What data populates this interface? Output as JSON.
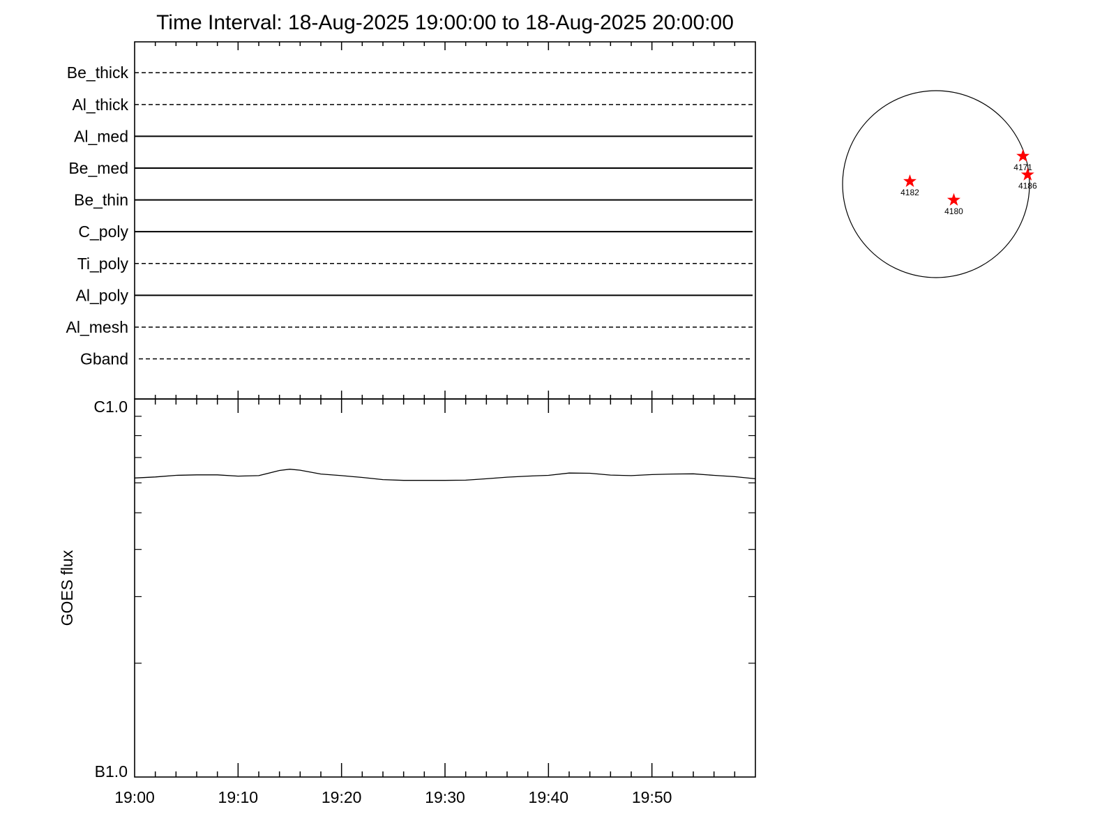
{
  "title": "Time Interval: 18-Aug-2025 19:00:00 to 18-Aug-2025 20:00:00",
  "colors": {
    "axes": "#000000",
    "background": "#ffffff",
    "marker": "#ff0000"
  },
  "chart_data": [
    {
      "type": "line",
      "name": "attenuator-status-panel",
      "x_range": [
        "19:00",
        "20:00"
      ],
      "series": [
        {
          "name": "Be_thick",
          "state": "dashed"
        },
        {
          "name": "Al_thick",
          "state": "dashed"
        },
        {
          "name": "Al_med",
          "state": "solid"
        },
        {
          "name": "Be_med",
          "state": "solid"
        },
        {
          "name": "Be_thin",
          "state": "solid"
        },
        {
          "name": "C_poly",
          "state": "solid"
        },
        {
          "name": "Ti_poly",
          "state": "dashed"
        },
        {
          "name": "Al_poly",
          "state": "solid"
        },
        {
          "name": "Al_mesh",
          "state": "dashed"
        },
        {
          "name": "Gband",
          "state": "dashed"
        }
      ]
    },
    {
      "type": "line",
      "name": "goes-flux-panel",
      "ylabel": "GOES flux",
      "y_scale": "log",
      "ylim": [
        "B1.0",
        "C1.0"
      ],
      "ylim_watts": [
        1e-07,
        1e-06
      ],
      "y_tick_labels": [
        "C1.0",
        "B1.0"
      ],
      "x_tick_labels": [
        "19:00",
        "19:10",
        "19:20",
        "19:30",
        "19:40",
        "19:50"
      ],
      "x_minutes": [
        0,
        2,
        4,
        6,
        8,
        10,
        12,
        14,
        15,
        16,
        18,
        20,
        22,
        24,
        26,
        28,
        30,
        32,
        34,
        36,
        38,
        40,
        42,
        44,
        46,
        48,
        50,
        52,
        54,
        56,
        58,
        60
      ],
      "series": [
        {
          "values_watts": [
            6.18e-07,
            6.22e-07,
            6.28e-07,
            6.3e-07,
            6.3e-07,
            6.25e-07,
            6.27e-07,
            6.47e-07,
            6.52e-07,
            6.48e-07,
            6.33e-07,
            6.27e-07,
            6.2e-07,
            6.12e-07,
            6.09e-07,
            6.09e-07,
            6.09e-07,
            6.1e-07,
            6.15e-07,
            6.21e-07,
            6.25e-07,
            6.28e-07,
            6.37e-07,
            6.36e-07,
            6.29e-07,
            6.27e-07,
            6.31e-07,
            6.33e-07,
            6.34e-07,
            6.28e-07,
            6.23e-07,
            6.15e-07
          ]
        }
      ]
    },
    {
      "type": "scatter",
      "name": "active-regions-solar-disk",
      "x_range_disk_radii": [
        -1,
        1
      ],
      "y_range_disk_radii": [
        -1,
        1
      ],
      "points": [
        {
          "label": "4182",
          "x": -0.28,
          "y": 0.03
        },
        {
          "label": "4180",
          "x": 0.19,
          "y": -0.17
        },
        {
          "label": "4171",
          "x": 0.93,
          "y": 0.3
        },
        {
          "label": "4186",
          "x": 0.98,
          "y": 0.1
        }
      ]
    }
  ]
}
